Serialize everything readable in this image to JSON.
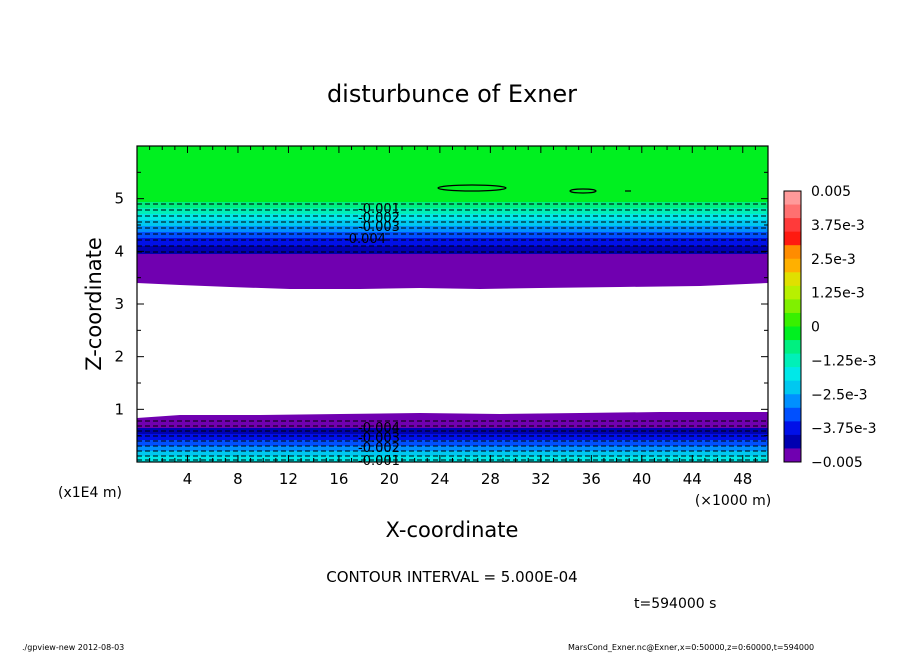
{
  "chart_data": {
    "type": "contour",
    "title": "disturbunce of Exner",
    "xlabel": "X-coordinate",
    "ylabel": "Z-coordinate",
    "x_unit": "(×1000 m)",
    "y_unit": "(x1E4 m)",
    "xlim": [
      0,
      50
    ],
    "ylim": [
      0,
      6
    ],
    "x_ticks": [
      4,
      8,
      12,
      16,
      20,
      24,
      28,
      32,
      36,
      40,
      44,
      48
    ],
    "y_ticks": [
      1,
      2,
      3,
      4,
      5
    ],
    "colorbar": {
      "labels": [
        "0.005",
        "3.75e-3",
        "2.5e-3",
        "1.25e-3",
        "0",
        "−1.25e-3",
        "−2.5e-3",
        "−3.75e-3",
        "−0.005"
      ],
      "colors": [
        "#ff9a9a",
        "#ff7070",
        "#ff3a3a",
        "#ff1a10",
        "#ff8c00",
        "#ffb000",
        "#e0e000",
        "#b8f000",
        "#80f000",
        "#38f000",
        "#00f020",
        "#00f080",
        "#00f0b8",
        "#00e8e8",
        "#00c8f0",
        "#0090ff",
        "#0050ff",
        "#0010e8",
        "#0000b0",
        "#7000b0"
      ]
    },
    "contour_labels_top": [
      "-0.001",
      "-0.002",
      "-0.003",
      "-0.004"
    ],
    "contour_labels_bottom": [
      "-0.004",
      "-0.003",
      "-0.002",
      "-0.001"
    ],
    "contour_interval": "CONTOUR INTERVAL = 5.000E-04",
    "time_label": "t=594000 s"
  },
  "footer": {
    "left": "./gpview-new  2012-08-03",
    "right": "MarsCond_Exner.nc@Exner,x=0:50000,z=0:60000,t=594000"
  }
}
